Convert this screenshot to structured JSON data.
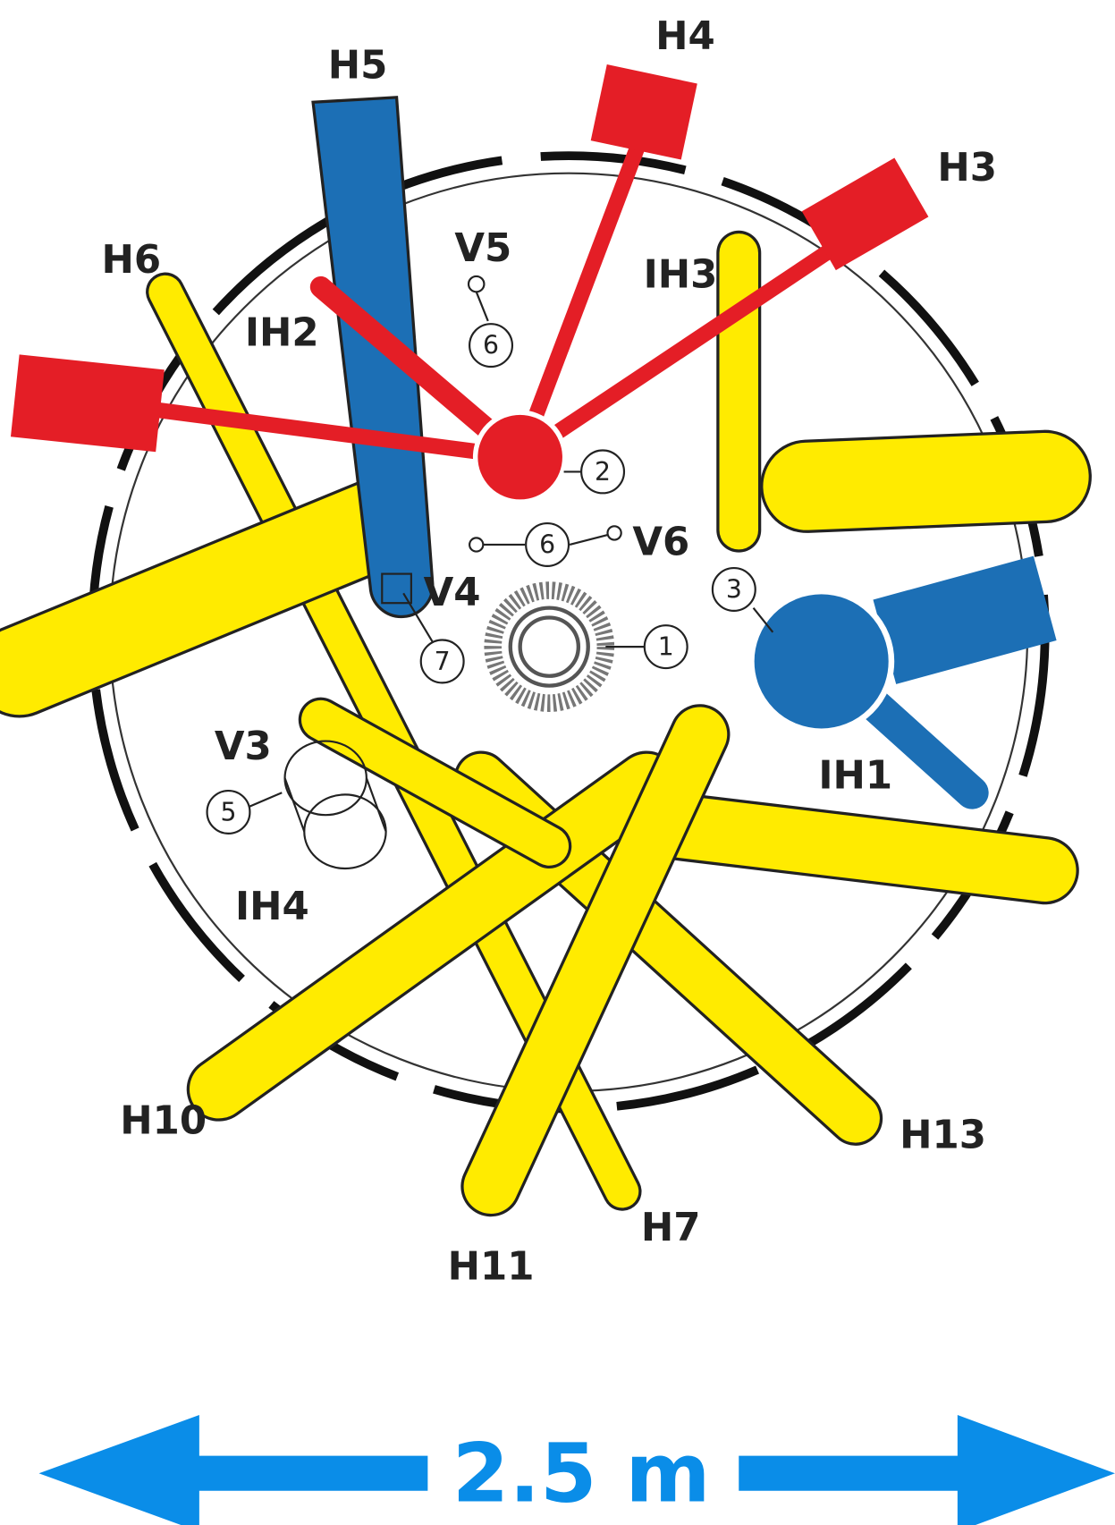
{
  "beam_tubes": {
    "h5": "H5",
    "h4": "H4",
    "h3": "H3",
    "h6": "H6",
    "ih3": "IH3",
    "ih2": "IH2",
    "ih1": "IH1",
    "ih4": "IH4",
    "h10": "H10",
    "h13": "H13",
    "h11": "H11",
    "h7": "H7"
  },
  "vertical_tubes": {
    "v5": "V5",
    "v6": "V6",
    "v4": "V4",
    "v3": "V3"
  },
  "numbers": {
    "v5": "6",
    "cold_source": "2",
    "v6": "6",
    "hot_source": "3",
    "v4": "7",
    "core": "1",
    "v3": "5"
  },
  "scale": {
    "label": "2.5 m"
  }
}
